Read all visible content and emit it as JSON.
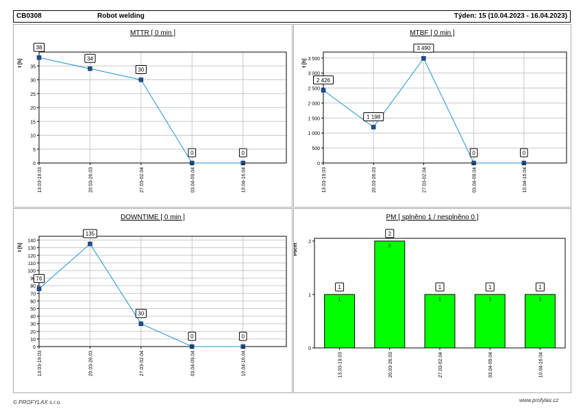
{
  "header": {
    "code": "CB0308",
    "title": "Robot welding",
    "week": "Týden: 15 (10.04.2023 - 16.04.2023)"
  },
  "footer": {
    "left": "© PROFYLAX s.r.o.",
    "right": "www.profylax.cz"
  },
  "colors": {
    "line": "#1e90d6",
    "marker": "#1f4e8c",
    "bar": "#00ff00",
    "grid": "#c8c8c8"
  },
  "chart_data": [
    {
      "type": "line",
      "title": "MTTR [ 0 min ]",
      "ylabel": "t [h]",
      "categories": [
        "13.03-19.03",
        "20.03-26.03",
        "27.03-02.04",
        "03.04-09.04",
        "10.04-16.04"
      ],
      "values": [
        38,
        34,
        30,
        0,
        0
      ],
      "value_labels": [
        "38",
        "34",
        "30",
        "0",
        "0"
      ],
      "ylim": [
        0,
        40
      ],
      "yticks": [
        0,
        5,
        10,
        15,
        20,
        25,
        30,
        35
      ],
      "ytick_labels": [
        "0",
        "5",
        "10",
        "15",
        "20",
        "25",
        "30",
        "35"
      ],
      "grid": true
    },
    {
      "type": "line",
      "title": "MTBF [ 0 min ]",
      "ylabel": "t [h]",
      "categories": [
        "13.03-19.03",
        "20.03-26.03",
        "27.03-02.04",
        "03.04-09.04",
        "10.04-16.04"
      ],
      "values": [
        2426,
        1198,
        3490,
        0,
        0
      ],
      "value_labels": [
        "2 426",
        "1 198",
        "3 490",
        "0",
        "0"
      ],
      "ylim": [
        0,
        3700
      ],
      "yticks": [
        0,
        500,
        1000,
        1500,
        2000,
        2500,
        3000,
        3500
      ],
      "ytick_labels": [
        "0",
        "500",
        "1 000",
        "1 500",
        "2 000",
        "2 500",
        "3 000",
        "3 500"
      ],
      "grid": true
    },
    {
      "type": "line",
      "title": "DOWNTIME [ 0 min ]",
      "ylabel": "t [h]",
      "categories": [
        "13.03-19.03",
        "20.03-26.03",
        "27.03-02.04",
        "03.04-09.04",
        "10.04-16.04"
      ],
      "values": [
        76,
        135,
        30,
        0,
        0
      ],
      "value_labels": [
        "76",
        "135",
        "30",
        "0",
        "0"
      ],
      "ylim": [
        0,
        145
      ],
      "yticks": [
        0,
        10,
        20,
        30,
        40,
        50,
        60,
        70,
        80,
        90,
        100,
        110,
        120,
        130,
        140
      ],
      "ytick_labels": [
        "0",
        "10",
        "20",
        "30",
        "40",
        "50",
        "60",
        "70",
        "80",
        "90",
        "100",
        "110",
        "120",
        "130",
        "140"
      ],
      "grid": true
    },
    {
      "type": "bar",
      "title": "PM [ splněno 1 / nesplněno 0 ]",
      "ylabel": "Počet",
      "categories": [
        "13.03-19.03",
        "20.03-26.03",
        "27.03-02.04",
        "03.04-09.04",
        "10.04-16.04"
      ],
      "values": [
        1,
        2,
        1,
        1,
        1
      ],
      "value_labels": [
        "1",
        "2",
        "1",
        "1",
        "1"
      ],
      "ylim": [
        0,
        2.05
      ],
      "yticks": [
        0,
        1,
        2
      ],
      "ytick_labels": [
        "0",
        "1",
        "2"
      ],
      "grid": false
    }
  ]
}
